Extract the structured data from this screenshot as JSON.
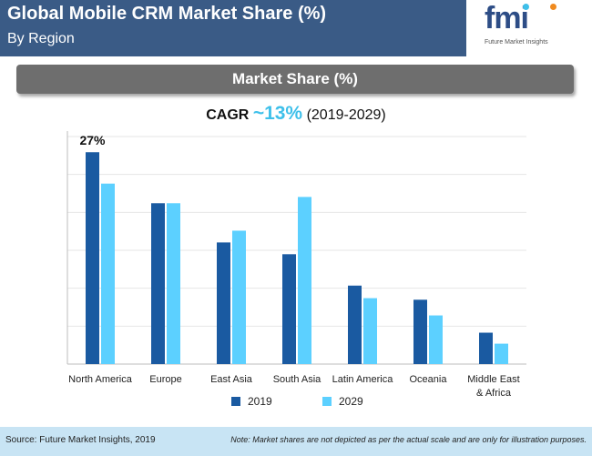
{
  "header": {
    "title": "Global Mobile CRM Market Share (%)",
    "subtitle": "By Region"
  },
  "logo": {
    "text": "fmi",
    "caption": "Future Market Insights"
  },
  "banner": {
    "text": "Market Share (%)"
  },
  "cagr": {
    "label": "CAGR",
    "value": "~13%",
    "period": "(2019-2029)"
  },
  "chart_data": {
    "type": "bar",
    "categories": [
      "North America",
      "Europe",
      "East Asia",
      "South Asia",
      "Latin America",
      "Oceania",
      "Middle East & Africa"
    ],
    "series": [
      {
        "name": "2019",
        "values": [
          27,
          20.5,
          15.5,
          14,
          10,
          8.2,
          4
        ]
      },
      {
        "name": "2029",
        "values": [
          23,
          20.5,
          17,
          21.3,
          8.4,
          6.2,
          2.6
        ]
      }
    ],
    "data_labels": [
      {
        "category": "North America",
        "series": "2019",
        "text": "27%"
      }
    ],
    "ylim": [
      0,
      29
    ],
    "grid": true,
    "legend": "bottom-center",
    "colors": {
      "2019": "#1a5aa1",
      "2029": "#5cd0ff"
    }
  },
  "colors": {
    "header_bg": "#3a5b86",
    "banner_bg": "#6e6e6e",
    "accent": "#3ec0ea",
    "footer_bg": "#c8e4f4"
  },
  "footer": {
    "source": "Source: Future Market Insights, 2019",
    "note": "Note: Market shares are not depicted as per the actual scale and are only for illustration purposes."
  }
}
